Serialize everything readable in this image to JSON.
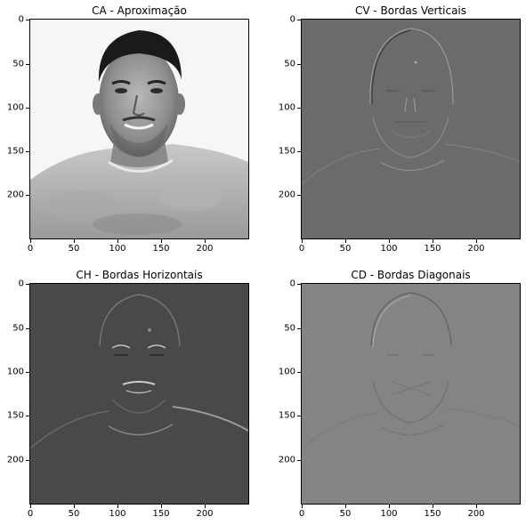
{
  "figure": {
    "panels": [
      {
        "title": "CA - Aproximação",
        "image_desc": "grayscale approximation of portrait",
        "background": "#f7f7f7"
      },
      {
        "title": "CV - Bordas Verticais",
        "image_desc": "vertical edge detail coefficients",
        "background": "#6a6a6a"
      },
      {
        "title": "CH - Bordas Horizontais",
        "image_desc": "horizontal edge detail coefficients",
        "background": "#4a4a4a"
      },
      {
        "title": "CD - Bordas Diagonais",
        "image_desc": "diagonal edge detail coefficients",
        "background": "#858585"
      }
    ],
    "x_ticks": [
      "0",
      "50",
      "100",
      "150",
      "200"
    ],
    "y_ticks": [
      "0",
      "50",
      "100",
      "150",
      "200"
    ]
  }
}
